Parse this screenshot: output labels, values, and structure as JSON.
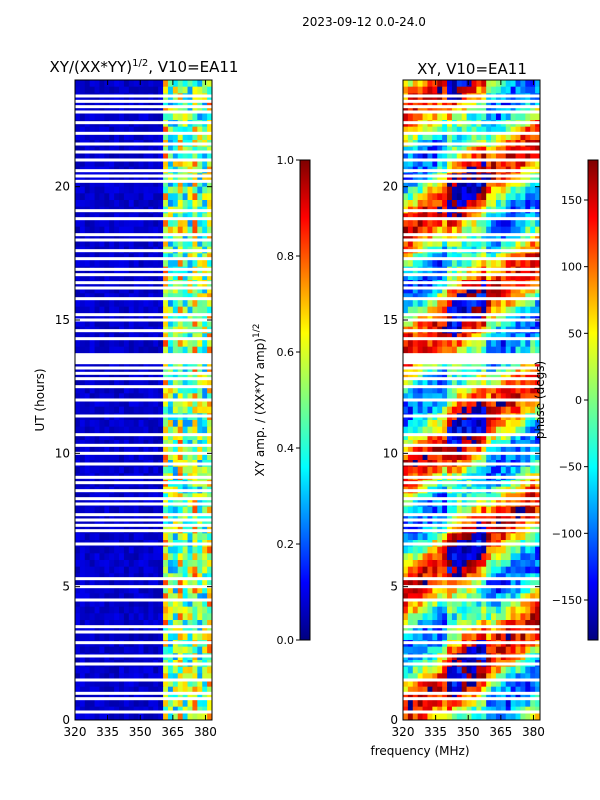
{
  "figure": {
    "suptitle": "2023-09-12 0.0-24.0",
    "xlabel": "frequency (MHz)"
  },
  "chart_data": [
    {
      "type": "heatmap",
      "title_main": "XY/(XX*YY)",
      "title_sup": "1/2",
      "title_tail": ", V10=EA11",
      "ylabel": "UT (hours)",
      "xlim": [
        320,
        383
      ],
      "ylim": [
        0,
        24
      ],
      "xticks": [
        "320",
        "335",
        "350",
        "365",
        "380"
      ],
      "xtick_values": [
        320,
        335,
        350,
        365,
        380
      ],
      "yticks": [
        "0",
        "5",
        "10",
        "15",
        "20"
      ],
      "ytick_values": [
        0,
        5,
        10,
        15,
        20
      ],
      "colorbar": {
        "label_main": "XY amp. / (XX*YY amp)",
        "label_sup": "1/2",
        "range": [
          0.0,
          1.0
        ],
        "ticks": [
          "0.0",
          "0.2",
          "0.4",
          "0.6",
          "0.8",
          "1.0"
        ],
        "tick_values": [
          0.0,
          0.2,
          0.4,
          0.6,
          0.8,
          1.0
        ]
      }
    },
    {
      "type": "heatmap",
      "title": "XY, V10=EA11",
      "xlim": [
        320,
        383
      ],
      "ylim": [
        0,
        24
      ],
      "xticks": [
        "320",
        "335",
        "350",
        "365",
        "380"
      ],
      "xtick_values": [
        320,
        335,
        350,
        365,
        380
      ],
      "yticks": [
        "0",
        "5",
        "10",
        "15",
        "20"
      ],
      "ytick_values": [
        0,
        5,
        10,
        15,
        20
      ],
      "colorbar": {
        "label": "phase (degs)",
        "range": [
          -180,
          180
        ],
        "ticks": [
          "−150",
          "−100",
          "−50",
          "0",
          "50",
          "100",
          "150"
        ],
        "tick_values": [
          -150,
          -100,
          -50,
          0,
          50,
          100,
          150
        ]
      }
    }
  ],
  "flagged_hours": [
    0.3,
    0.8,
    1.0,
    1.5,
    2.1,
    2.4,
    2.9,
    3.3,
    3.5,
    4.5,
    5.0,
    5.3,
    6.6,
    7.1,
    7.3,
    7.5,
    7.7,
    8.1,
    8.3,
    8.6,
    8.9,
    9.1,
    9.6,
    10.0,
    10.3,
    10.7,
    11.4,
    12.0,
    12.5,
    12.8,
    13.0,
    13.2,
    13.4,
    13.5,
    13.6,
    13.7,
    14.3,
    14.6,
    15.0,
    15.2,
    15.8,
    16.2,
    16.4,
    16.7,
    16.9,
    17.3,
    17.6,
    18.0,
    18.2,
    18.8,
    19.1,
    20.2,
    20.4,
    20.6,
    21.0,
    21.3,
    21.6,
    22.0,
    22.4,
    22.8,
    23.0,
    23.2,
    23.4
  ],
  "active_band_mhz": [
    360,
    383
  ],
  "colors": {
    "jet_dark_blue": "#00008f",
    "flag": "#ffffff"
  }
}
